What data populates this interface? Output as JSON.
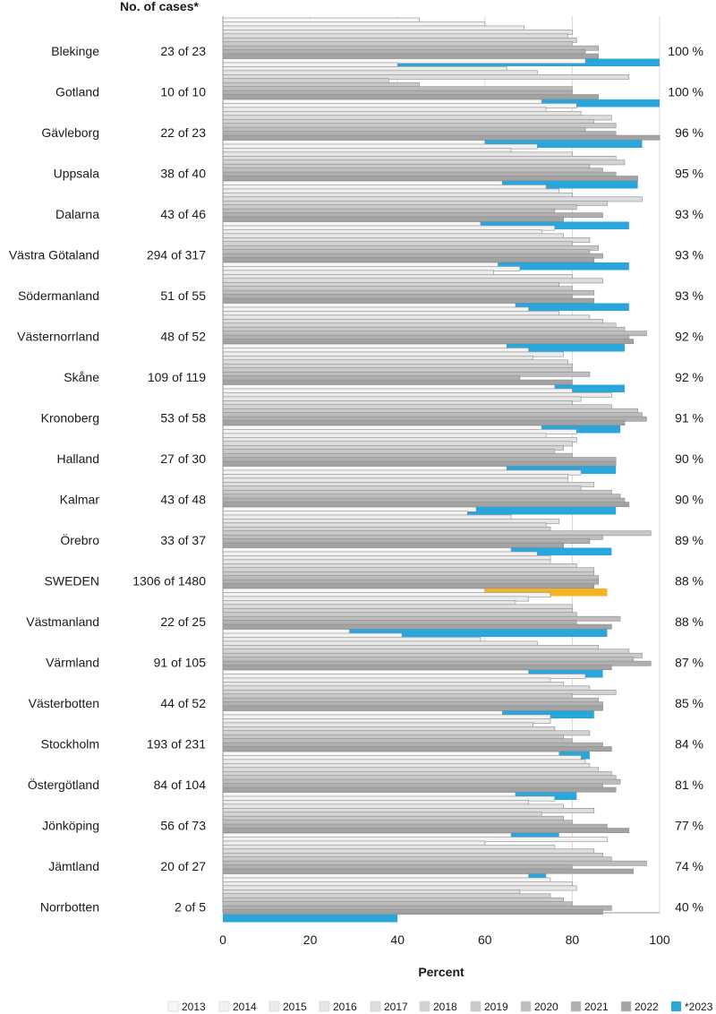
{
  "header": {
    "cases_label": "No. of cases*"
  },
  "chart_data": {
    "type": "bar",
    "orientation": "horizontal",
    "xlabel": "Percent",
    "xlim": [
      0,
      100
    ],
    "xticks": [
      "0",
      "20",
      "40",
      "60",
      "80",
      "100"
    ],
    "grid": true,
    "legend_position": "bottom",
    "years": [
      "2013",
      "2014",
      "2015",
      "2016",
      "2017",
      "2018",
      "2019",
      "2020",
      "2021",
      "2022",
      "*2023"
    ],
    "colors": {
      "years": [
        "#f7f7f7",
        "#f2f2f2",
        "#ececec",
        "#e6e6e6",
        "#dddddd",
        "#d3d3d3",
        "#c9c9c9",
        "#bdbdbd",
        "#b0b0b0",
        "#a3a3a3"
      ],
      "current": "#2aa6dd",
      "national": "#f5b324",
      "bar_stroke": "#8c8c8c",
      "grid": "#d9d9d9"
    },
    "categories": [
      "Blekinge",
      "Gotland",
      "Gävleborg",
      "Uppsala",
      "Dalarna",
      "Västra Götaland",
      "Södermanland",
      "Västernorrland",
      "Skåne",
      "Kronoberg",
      "Halland",
      "Kalmar",
      "Örebro",
      "SWEDEN",
      "Västmanland",
      "Värmland",
      "Västerbotten",
      "Stockholm",
      "Östergötland",
      "Jönköping",
      "Jämtland",
      "Norrbotten"
    ],
    "cases": [
      "23 of 23",
      "10 of 10",
      "22 of 23",
      "38 of 40",
      "43 of 46",
      "294 of 317",
      "51 of 55",
      "48 of 52",
      "109 of 119",
      "53 of 58",
      "27 of 30",
      "43 of 48",
      "33 of 37",
      "1306 of 1480",
      "22 of 25",
      "91 of 105",
      "44 of 52",
      "193 of 231",
      "84 of 104",
      "56 of 73",
      "20 of 27",
      "2 of 5"
    ],
    "current_labels": [
      "100 %",
      "100 %",
      "96 %",
      "95 %",
      "93 %",
      "93 %",
      "93 %",
      "92 %",
      "92 %",
      "91 %",
      "90 %",
      "90 %",
      "89 %",
      "88 %",
      "88 %",
      "87 %",
      "85 %",
      "84 %",
      "81 %",
      "77 %",
      "74 %",
      "40 %"
    ],
    "highlight_category": "SWEDEN",
    "values": [
      [
        45,
        60,
        69,
        80,
        79,
        81,
        80,
        86,
        83,
        86,
        100
      ],
      [
        83,
        40,
        65,
        72,
        93,
        38,
        45,
        80,
        80,
        86,
        100
      ],
      [
        73,
        81,
        74,
        82,
        89,
        85,
        90,
        83,
        90,
        100,
        96
      ],
      [
        60,
        72,
        66,
        80,
        90,
        92,
        84,
        87,
        90,
        95,
        95
      ],
      [
        64,
        74,
        77,
        80,
        96,
        88,
        81,
        76,
        87,
        78,
        93
      ],
      [
        59,
        76,
        73,
        78,
        84,
        80,
        86,
        84,
        87,
        85,
        93
      ],
      [
        63,
        68,
        62,
        80,
        87,
        77,
        80,
        85,
        80,
        85,
        93
      ],
      [
        67,
        70,
        77,
        84,
        87,
        90,
        92,
        97,
        93,
        94,
        92
      ],
      [
        65,
        70,
        78,
        71,
        79,
        80,
        80,
        84,
        68,
        80,
        92
      ],
      [
        76,
        80,
        89,
        82,
        80,
        89,
        95,
        96,
        97,
        92,
        91
      ],
      [
        73,
        81,
        74,
        81,
        80,
        78,
        76,
        80,
        90,
        90,
        90
      ],
      [
        65,
        82,
        79,
        79,
        85,
        82,
        89,
        91,
        92,
        93,
        90
      ],
      [
        58,
        56,
        66,
        77,
        74,
        75,
        98,
        87,
        84,
        78,
        89
      ],
      [
        66,
        72,
        75,
        75,
        81,
        85,
        85,
        86,
        86,
        85,
        88
      ],
      [
        60,
        75,
        70,
        67,
        80,
        80,
        81,
        91,
        81,
        89,
        88
      ],
      [
        29,
        41,
        59,
        72,
        86,
        93,
        96,
        94,
        98,
        89,
        87
      ],
      [
        70,
        83,
        75,
        78,
        84,
        90,
        80,
        86,
        87,
        87,
        85
      ],
      [
        64,
        75,
        75,
        71,
        76,
        84,
        78,
        80,
        87,
        89,
        84
      ],
      [
        77,
        82,
        83,
        84,
        86,
        89,
        90,
        91,
        87,
        90,
        81
      ],
      [
        67,
        76,
        70,
        78,
        85,
        73,
        78,
        80,
        88,
        93,
        77
      ],
      [
        66,
        88,
        60,
        76,
        85,
        87,
        89,
        97,
        80,
        94,
        74
      ],
      [
        70,
        75,
        80,
        81,
        68,
        75,
        78,
        80,
        89,
        87,
        40
      ]
    ]
  }
}
